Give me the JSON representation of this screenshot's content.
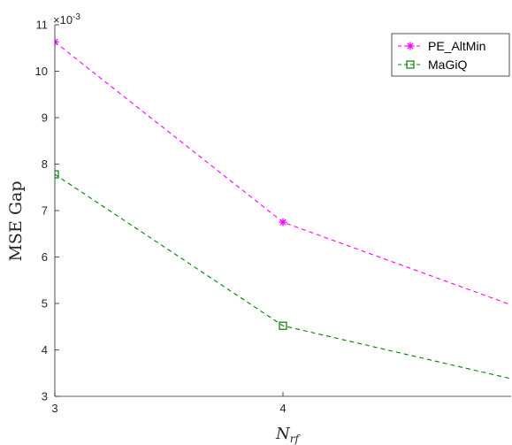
{
  "chart_data": {
    "type": "line",
    "title": "",
    "xlabel": "N",
    "xlabel_subscript": "rf",
    "ylabel": "MSE Gap",
    "y_exponent_label": "×10",
    "y_exponent_power": "-3",
    "xlim": [
      3,
      5
    ],
    "ylim": [
      3,
      11
    ],
    "x_ticks": [
      "3",
      "4"
    ],
    "y_ticks": [
      "3",
      "4",
      "5",
      "6",
      "7",
      "8",
      "9",
      "10",
      "11"
    ],
    "grid": false,
    "legend_position": "top-right",
    "series": [
      {
        "name": "PE_AltMin",
        "x": [
          3,
          4,
          5
        ],
        "y": [
          10.63,
          6.75,
          4.97
        ],
        "color": "#ff00ff",
        "marker": "asterisk",
        "line_style": "dashed"
      },
      {
        "name": "MaGiQ",
        "x": [
          3,
          4,
          5
        ],
        "y": [
          7.78,
          4.52,
          3.38
        ],
        "color": "#008000",
        "marker": "square",
        "line_style": "dashed"
      }
    ]
  }
}
